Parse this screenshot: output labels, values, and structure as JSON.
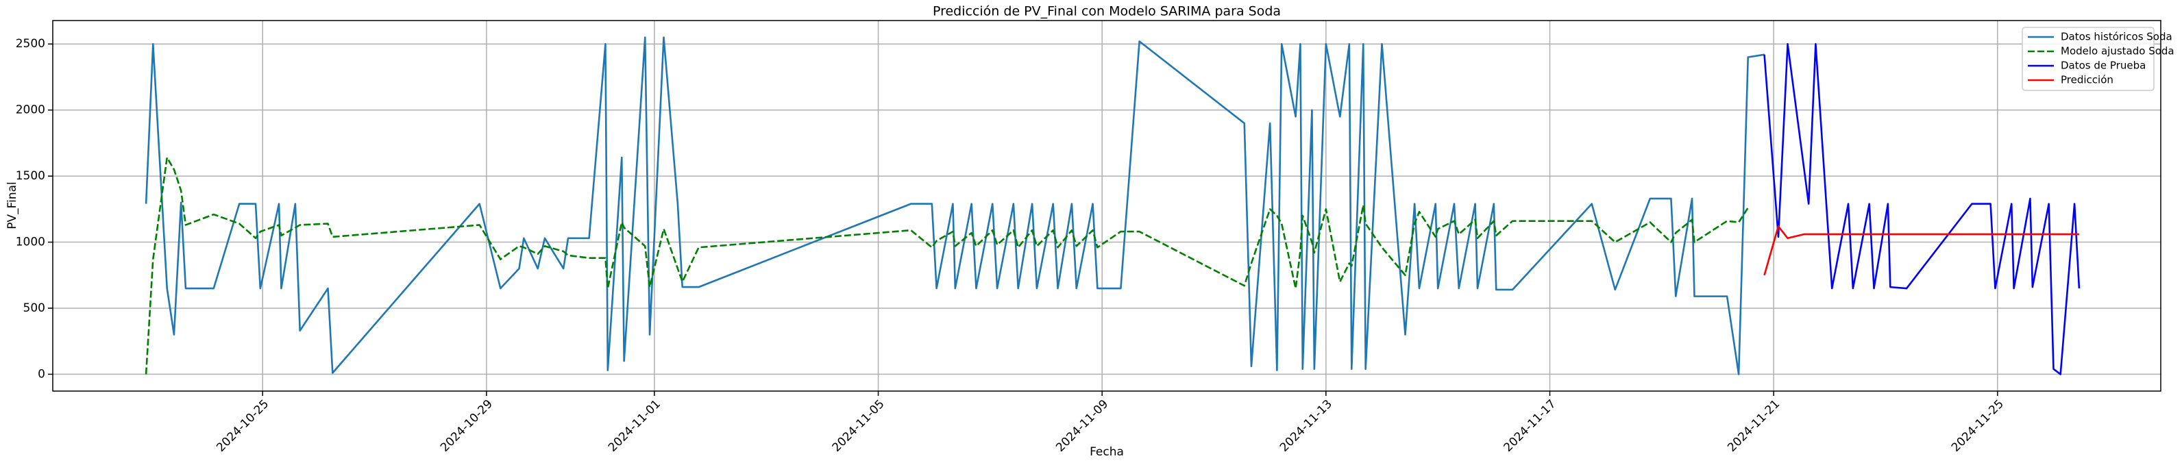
{
  "chart_data": {
    "type": "line",
    "title": "Predicción de PV_Final con Modelo SARIMA para Soda",
    "x_label": "Fecha",
    "y_label": "PV_Final",
    "grid": true,
    "legend": "upper right",
    "xlim": [
      "2024-10-21 06:00",
      "2024-11-27 22:00"
    ],
    "ylim": [
      -127.5,
      2677.5
    ],
    "xticks": [
      "2024-10-25",
      "2024-10-29",
      "2024-11-01",
      "2024-11-05",
      "2024-11-09",
      "2024-11-13",
      "2024-11-17",
      "2024-11-21",
      "2024-11-25"
    ],
    "yticks": [
      0,
      500,
      1000,
      1500,
      2000,
      2500
    ],
    "x": [
      "2024-10-22 22:00",
      "2024-10-23 01:00",
      "2024-10-23 07:00",
      "2024-10-23 10:00",
      "2024-10-23 13:00",
      "2024-10-23 15:00",
      "2024-10-24 03:00",
      "2024-10-24 14:00",
      "2024-10-24 21:00",
      "2024-10-24 23:00",
      "2024-10-25 07:00",
      "2024-10-25 08:00",
      "2024-10-25 14:00",
      "2024-10-25 16:00",
      "2024-10-26 04:00",
      "2024-10-26 06:00",
      "2024-10-28 21:00",
      "2024-10-29 06:00",
      "2024-10-29 14:00",
      "2024-10-29 16:00",
      "2024-10-29 22:00",
      "2024-10-30 01:00",
      "2024-10-30 09:00",
      "2024-10-30 11:00",
      "2024-10-30 20:00",
      "2024-10-31 03:00",
      "2024-10-31 04:00",
      "2024-10-31 10:00",
      "2024-10-31 11:00",
      "2024-10-31 20:00",
      "2024-10-31 22:00",
      "2024-11-01 04:00",
      "2024-11-01 10:00",
      "2024-11-01 12:00",
      "2024-11-01 19:00",
      "2024-11-05 14:00",
      "2024-11-05 23:00",
      "2024-11-06 01:00",
      "2024-11-06 08:00",
      "2024-11-06 09:00",
      "2024-11-06 16:00",
      "2024-11-06 18:00",
      "2024-11-07 01:00",
      "2024-11-07 03:00",
      "2024-11-07 10:00",
      "2024-11-07 12:00",
      "2024-11-07 18:00",
      "2024-11-07 20:00",
      "2024-11-08 03:00",
      "2024-11-08 05:00",
      "2024-11-08 11:00",
      "2024-11-08 13:00",
      "2024-11-08 20:00",
      "2024-11-08 22:00",
      "2024-11-09 08:00",
      "2024-11-09 16:00",
      "2024-11-11 13:00",
      "2024-11-11 16:00",
      "2024-11-12 00:00",
      "2024-11-12 03:00",
      "2024-11-12 05:00",
      "2024-11-12 11:00",
      "2024-11-12 13:00",
      "2024-11-12 14:00",
      "2024-11-12 18:00",
      "2024-11-12 19:00",
      "2024-11-13 00:00",
      "2024-11-13 06:00",
      "2024-11-13 10:00",
      "2024-11-13 11:00",
      "2024-11-13 16:00",
      "2024-11-13 17:00",
      "2024-11-14 00:00",
      "2024-11-14 10:00",
      "2024-11-14 14:00",
      "2024-11-14 16:00",
      "2024-11-14 23:00",
      "2024-11-15 00:00",
      "2024-11-15 07:00",
      "2024-11-15 09:00",
      "2024-11-15 16:00",
      "2024-11-15 17:00",
      "2024-11-16 00:00",
      "2024-11-16 01:00",
      "2024-11-16 08:00",
      "2024-11-17 18:00",
      "2024-11-18 04:00",
      "2024-11-18 19:00",
      "2024-11-19 04:00",
      "2024-11-19 06:00",
      "2024-11-19 13:00",
      "2024-11-19 14:00",
      "2024-11-20 04:00",
      "2024-11-20 09:00",
      "2024-11-20 13:00",
      "2024-11-20 20:00"
    ],
    "series": [
      {
        "name": "Datos históricos Soda",
        "color": "#1f77b4",
        "linestyle": "solid",
        "values": [
          1290,
          2500,
          650,
          300,
          1300,
          650,
          650,
          1290,
          1290,
          650,
          1290,
          650,
          1290,
          330,
          650,
          10,
          1290,
          650,
          800,
          1030,
          800,
          1030,
          800,
          1030,
          1030,
          2500,
          30,
          1640,
          100,
          2550,
          300,
          2550,
          1290,
          660,
          660,
          1290,
          1290,
          650,
          1290,
          650,
          1290,
          650,
          1290,
          650,
          1290,
          650,
          1290,
          650,
          1290,
          650,
          1290,
          650,
          1290,
          650,
          650,
          2520,
          1900,
          60,
          1900,
          30,
          2500,
          1950,
          2500,
          40,
          2000,
          40,
          2500,
          1950,
          2500,
          40,
          2500,
          40,
          2500,
          300,
          1290,
          650,
          1290,
          650,
          1290,
          650,
          1290,
          650,
          1290,
          640,
          640,
          1290,
          640,
          1330,
          1330,
          590,
          1330,
          590,
          590,
          0,
          2400,
          2420
        ]
      },
      {
        "name": "Modelo ajustado Soda",
        "color": "#008000",
        "linestyle": "dashed",
        "values": [
          0,
          870,
          1640,
          1550,
          1390,
          1130,
          1210,
          1140,
          1030,
          1080,
          1130,
          1050,
          1110,
          1130,
          1140,
          1040,
          1130,
          870,
          970,
          960,
          910,
          970,
          930,
          900,
          880,
          880,
          650,
          1150,
          1110,
          970,
          660,
          1100,
          800,
          700,
          960,
          1090,
          960,
          1010,
          1080,
          970,
          1070,
          970,
          1090,
          980,
          1090,
          960,
          1090,
          970,
          1090,
          960,
          1090,
          970,
          1090,
          960,
          1080,
          1080,
          670,
          840,
          1250,
          1200,
          1140,
          650,
          930,
          1200,
          1000,
          920,
          1250,
          700,
          840,
          820,
          1280,
          1140,
          960,
          750,
          1140,
          1230,
          1040,
          1100,
          1160,
          1060,
          1170,
          1030,
          1160,
          1050,
          1160,
          1160,
          1000,
          1150,
          1000,
          1070,
          1170,
          1000,
          1160,
          1150,
          1260,
          null
        ]
      },
      {
        "name": "Datos de Prueba",
        "color": "#0000ff",
        "linestyle": "solid",
        "x": [
          "2024-11-20 20:00",
          "2024-11-21 02:00",
          "2024-11-21 06:00",
          "2024-11-21 15:00",
          "2024-11-21 18:00",
          "2024-11-22 01:00",
          "2024-11-22 08:00",
          "2024-11-22 10:00",
          "2024-11-22 17:00",
          "2024-11-22 19:00",
          "2024-11-23 01:00",
          "2024-11-23 02:00",
          "2024-11-23 09:00",
          "2024-11-24 13:00",
          "2024-11-24 21:00",
          "2024-11-24 23:00",
          "2024-11-25 06:00",
          "2024-11-25 07:00",
          "2024-11-25 14:00",
          "2024-11-25 15:00",
          "2024-11-25 22:00",
          "2024-11-26 00:00",
          "2024-11-26 03:00",
          "2024-11-26 09:00",
          "2024-11-26 11:00"
        ],
        "values": [
          2420,
          1040,
          2500,
          1290,
          2500,
          650,
          1290,
          650,
          1290,
          650,
          1290,
          660,
          650,
          1290,
          1290,
          650,
          1290,
          650,
          1330,
          660,
          1290,
          40,
          0,
          1290,
          650
        ]
      },
      {
        "name": "Predicción",
        "color": "#ff0000",
        "linestyle": "solid",
        "x": [
          "2024-11-20 20:00",
          "2024-11-21 02:00",
          "2024-11-21 06:00",
          "2024-11-21 13:00",
          "2024-11-26 11:00"
        ],
        "values": [
          750,
          1120,
          1030,
          1060,
          1060
        ]
      }
    ]
  }
}
